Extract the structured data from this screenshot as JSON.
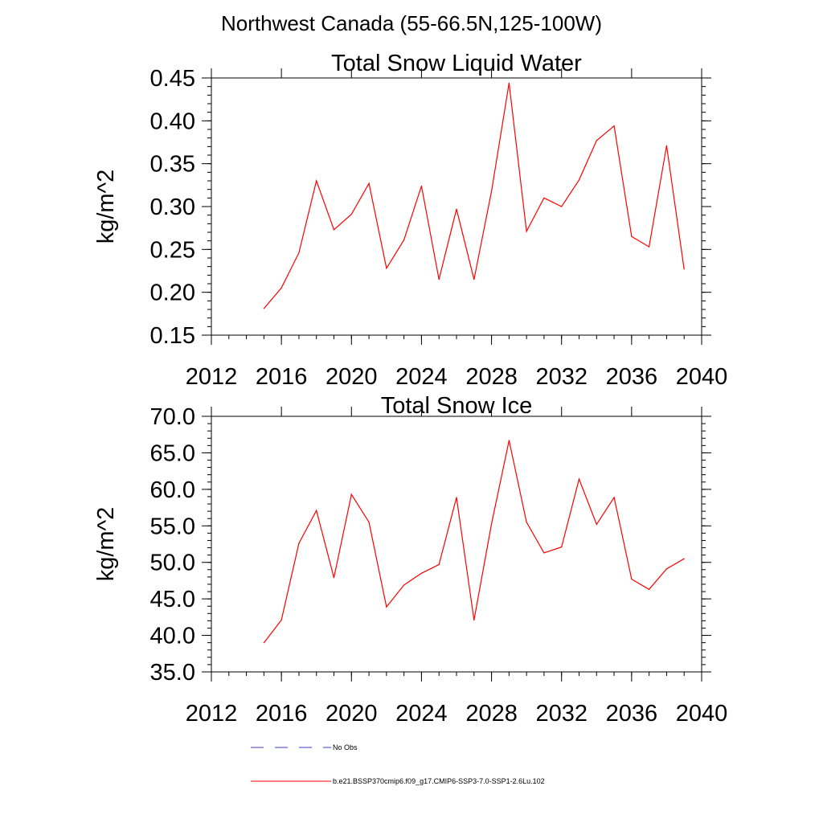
{
  "figure": {
    "suptitle": "Northwest Canada (55-66.5N,125-100W)"
  },
  "chart_data": [
    {
      "type": "line",
      "title": "Total Snow Liquid Water",
      "xlabel": "",
      "ylabel": "kg/m^2",
      "xlim": [
        2012,
        2040
      ],
      "ylim": [
        0.15,
        0.45
      ],
      "xticks": [
        2012,
        2016,
        2020,
        2024,
        2028,
        2032,
        2036,
        2040
      ],
      "xtick_labels": [
        "2012",
        "2016",
        "2020",
        "2024",
        "2028",
        "2032",
        "2036",
        "2040"
      ],
      "yticks": [
        0.15,
        0.2,
        0.25,
        0.3,
        0.35,
        0.4,
        0.45
      ],
      "ytick_labels": [
        "0.15",
        "0.20",
        "0.25",
        "0.30",
        "0.35",
        "0.40",
        "0.45"
      ],
      "grid": false,
      "series": [
        {
          "name": "b.e21.BSSP370cmip6.f09_g17.CMIP6-SSP3-7.0-SSP1-2.6Lu.102",
          "color": "#ff0000",
          "x": [
            2015,
            2016,
            2017,
            2018,
            2019,
            2020,
            2021,
            2022,
            2023,
            2024,
            2025,
            2026,
            2027,
            2028,
            2029,
            2030,
            2031,
            2032,
            2033,
            2034,
            2035,
            2036,
            2037,
            2038,
            2039
          ],
          "y": [
            0.181,
            0.205,
            0.246,
            0.33,
            0.273,
            0.291,
            0.327,
            0.228,
            0.261,
            0.324,
            0.215,
            0.297,
            0.215,
            0.318,
            0.444,
            0.271,
            0.31,
            0.3,
            0.331,
            0.377,
            0.394,
            0.265,
            0.253,
            0.371,
            0.227
          ]
        }
      ]
    },
    {
      "type": "line",
      "title": "Total Snow Ice",
      "xlabel": "",
      "ylabel": "kg/m^2",
      "xlim": [
        2012,
        2040
      ],
      "ylim": [
        35.0,
        70.0
      ],
      "xticks": [
        2012,
        2016,
        2020,
        2024,
        2028,
        2032,
        2036,
        2040
      ],
      "xtick_labels": [
        "2012",
        "2016",
        "2020",
        "2024",
        "2028",
        "2032",
        "2036",
        "2040"
      ],
      "yticks": [
        35.0,
        40.0,
        45.0,
        50.0,
        55.0,
        60.0,
        65.0,
        70.0
      ],
      "ytick_labels": [
        "35.0",
        "40.0",
        "45.0",
        "50.0",
        "55.0",
        "60.0",
        "65.0",
        "70.0"
      ],
      "grid": false,
      "series": [
        {
          "name": "b.e21.BSSP370cmip6.f09_g17.CMIP6-SSP3-7.0-SSP1-2.6Lu.102",
          "color": "#ff0000",
          "x": [
            2015,
            2016,
            2017,
            2018,
            2019,
            2020,
            2021,
            2022,
            2023,
            2024,
            2025,
            2026,
            2027,
            2028,
            2029,
            2030,
            2031,
            2032,
            2033,
            2034,
            2035,
            2036,
            2037,
            2038,
            2039
          ],
          "y": [
            39.0,
            42.1,
            52.6,
            57.1,
            47.9,
            59.3,
            55.5,
            43.9,
            46.9,
            48.5,
            49.7,
            58.9,
            42.1,
            55.3,
            66.7,
            55.5,
            51.3,
            52.1,
            61.4,
            55.2,
            58.9,
            47.7,
            46.3,
            49.1,
            50.5
          ]
        }
      ]
    }
  ],
  "legend": {
    "placement": "bottom-left",
    "entries": [
      {
        "label": "No Obs",
        "color": "#3b3bd1",
        "style": "dashed"
      },
      {
        "label": "b.e21.BSSP370cmip6.f09_g17.CMIP6-SSP3-7.0-SSP1-2.6Lu.102",
        "color": "#ff0000",
        "style": "solid"
      }
    ]
  }
}
